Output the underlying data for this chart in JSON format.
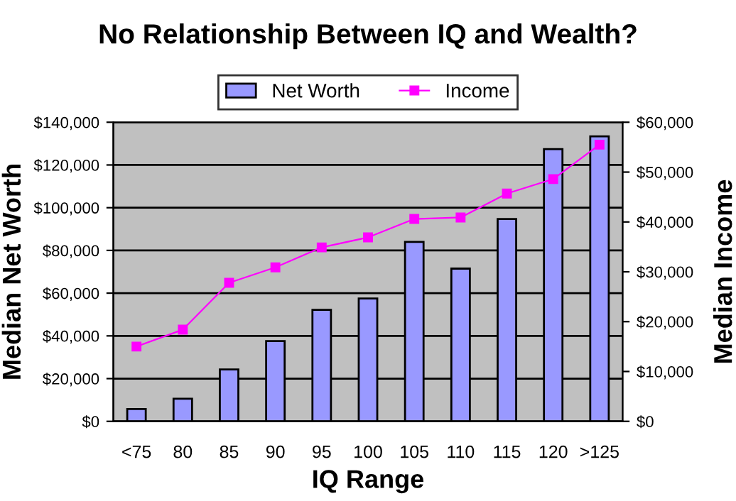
{
  "chart_data": {
    "type": "bar",
    "title": "No Relationship Between IQ and Wealth?",
    "xlabel": "IQ Range",
    "ylabel": "Median Net Worth",
    "y2label": "Median Income",
    "categories": [
      "<75",
      "80",
      "85",
      "90",
      "95",
      "100",
      "105",
      "110",
      "115",
      "120",
      ">125"
    ],
    "series": [
      {
        "name": "Net Worth",
        "color": "#9999ff",
        "values": [
          5800,
          10600,
          24300,
          37600,
          52200,
          57500,
          84000,
          71500,
          94700,
          127400,
          133400
        ]
      },
      {
        "name": "Income",
        "type": "line",
        "axis": "y2",
        "color": "#ff00ff",
        "marker": "square",
        "values": [
          15000,
          18400,
          27800,
          30900,
          34900,
          36900,
          40600,
          40900,
          45700,
          48600,
          55500
        ]
      }
    ],
    "ylim": [
      0,
      140000
    ],
    "yticks": [
      {
        "value": 0,
        "label": "$0"
      },
      {
        "value": 20000,
        "label": "$20,000"
      },
      {
        "value": 40000,
        "label": "$40,000"
      },
      {
        "value": 60000,
        "label": "$60,000"
      },
      {
        "value": 80000,
        "label": "$80,000"
      },
      {
        "value": 100000,
        "label": "$100,000"
      },
      {
        "value": 120000,
        "label": "$120,000"
      },
      {
        "value": 140000,
        "label": "$140,000"
      }
    ],
    "y2lim": [
      0,
      60000
    ],
    "y2ticks": [
      {
        "value": 0,
        "label": "$0"
      },
      {
        "value": 10000,
        "label": "$10,000"
      },
      {
        "value": 20000,
        "label": "$20,000"
      },
      {
        "value": 30000,
        "label": "$30,000"
      },
      {
        "value": 40000,
        "label": "$40,000"
      },
      {
        "value": 50000,
        "label": "$50,000"
      },
      {
        "value": 60000,
        "label": "$60,000"
      }
    ],
    "grid": "y",
    "legend": "top"
  }
}
